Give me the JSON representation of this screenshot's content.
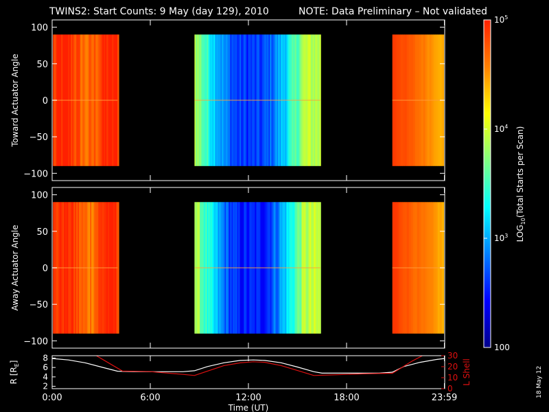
{
  "title": {
    "main": "TWINS2: Start Counts:  9 May (day 129), 2010",
    "note": "NOTE: Data Preliminary – Not validated",
    "note_color": "#ff2020"
  },
  "side_date": "18 May 12",
  "colorbar": {
    "label": "LOG10(Total Starts per Scan)",
    "ticks": [
      "100",
      "10^3",
      "10^4",
      "10^5"
    ],
    "scale": "log",
    "range": [
      100,
      100000
    ],
    "colormap": [
      "#00008c",
      "#0000ff",
      "#0080ff",
      "#00ffff",
      "#80ff80",
      "#ffff00",
      "#ff8000",
      "#ff2000"
    ]
  },
  "time_axis": {
    "label": "Time (UT)",
    "ticks": [
      "0:00",
      "6:00",
      "12:00",
      "18:00",
      "23:59"
    ]
  },
  "chart_data": [
    {
      "type": "heatmap",
      "panel": "top",
      "ylabel": "Toward Actuator Angle",
      "ylim": [
        -110,
        110
      ],
      "yticks": [
        -100,
        -50,
        0,
        50,
        100
      ],
      "xlim": [
        0,
        24
      ],
      "data_angle_range": [
        -90,
        90
      ],
      "segments": [
        {
          "start": 0.05,
          "end": 4.0,
          "log_counts_range": [
            4.6,
            5.0
          ],
          "texture": "striped"
        },
        {
          "start": 8.7,
          "end": 16.4,
          "log_counts_range": [
            2.6,
            3.9
          ],
          "texture": "striped"
        },
        {
          "start": 20.8,
          "end": 23.9,
          "log_counts_range": [
            4.4,
            4.9
          ],
          "texture": "smooth"
        }
      ]
    },
    {
      "type": "heatmap",
      "panel": "middle",
      "ylabel": "Away Actuator Angle",
      "ylim": [
        -110,
        110
      ],
      "yticks": [
        -100,
        -50,
        0,
        50,
        100
      ],
      "xlim": [
        0,
        24
      ],
      "data_angle_range": [
        -90,
        90
      ],
      "segments": [
        {
          "start": 0.05,
          "end": 4.0,
          "log_counts_range": [
            4.6,
            5.0
          ],
          "texture": "striped"
        },
        {
          "start": 8.7,
          "end": 16.4,
          "log_counts_range": [
            2.5,
            3.9
          ],
          "texture": "striped"
        },
        {
          "start": 20.8,
          "end": 23.9,
          "log_counts_range": [
            4.4,
            4.9
          ],
          "texture": "smooth"
        }
      ]
    },
    {
      "type": "line",
      "panel": "bottom",
      "ylabel": "R [RE]",
      "ylabel_right": "L Shell",
      "ylim": [
        1.5,
        8.5
      ],
      "yticks": [
        2,
        4,
        6,
        8
      ],
      "ylim_right": [
        0,
        30
      ],
      "yticks_right": [
        0,
        10,
        20,
        30
      ],
      "xlim": [
        0,
        24
      ],
      "series": [
        {
          "axis": "left",
          "color": "#ffffff",
          "x": [
            0,
            1,
            2,
            3,
            4,
            5,
            6,
            7,
            8,
            8.7,
            9.5,
            10.5,
            11.5,
            12.3,
            13,
            14,
            15,
            16,
            16.5,
            17,
            18,
            19,
            20,
            20.8,
            21.5,
            22.5,
            23.5,
            23.98
          ],
          "y": [
            7.9,
            7.6,
            7.0,
            6.1,
            5.2,
            5.1,
            5.1,
            5.1,
            5.1,
            5.3,
            6.2,
            7.0,
            7.5,
            7.6,
            7.5,
            7.0,
            6.1,
            5.1,
            4.8,
            4.8,
            4.8,
            4.8,
            4.8,
            5.0,
            6.2,
            7.1,
            7.7,
            7.9
          ]
        },
        {
          "axis": "right",
          "color": "#e01010",
          "x": [
            2.7,
            3.5,
            4.3,
            6,
            8,
            8.7,
            9.5,
            10.5,
            11.5,
            12.3,
            13,
            14,
            15,
            16,
            17,
            19,
            20.5,
            20.8,
            21.3,
            22,
            22.7
          ],
          "y": [
            30,
            23,
            16,
            15.5,
            13,
            12,
            16,
            21,
            23.5,
            24.5,
            24,
            21,
            16.5,
            12,
            12.5,
            13.5,
            14,
            14,
            18.5,
            25,
            30.5
          ]
        }
      ]
    }
  ]
}
